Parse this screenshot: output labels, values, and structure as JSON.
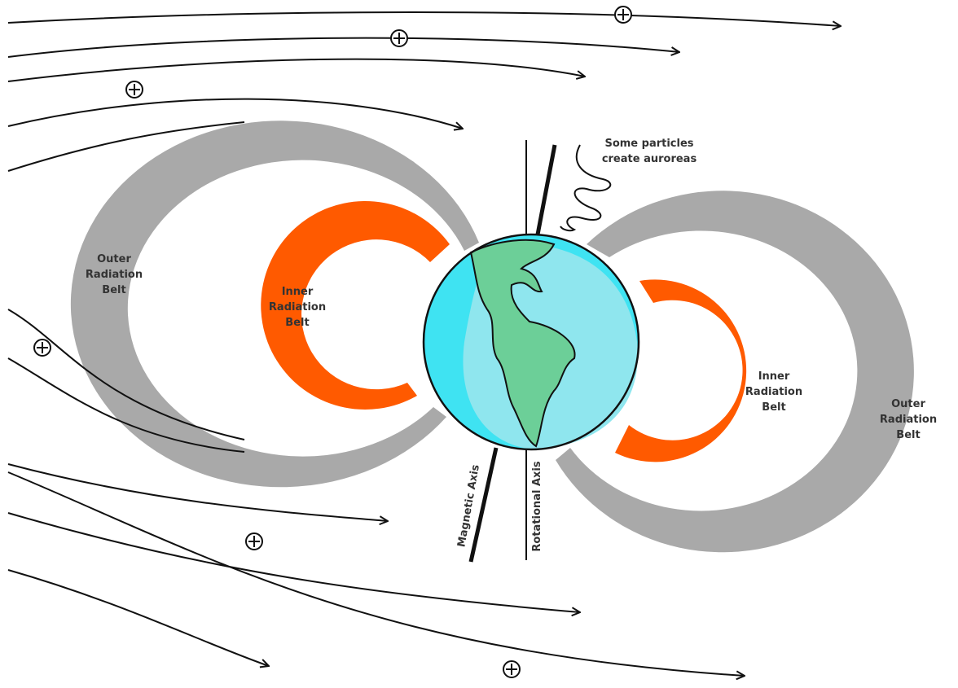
{
  "labels": [
    {
      "lines": [
        "Outer",
        "Radiation",
        "Belt"
      ]
    },
    {
      "lines": [
        "Inner",
        "Radiation",
        "Belt"
      ]
    },
    {
      "lines": [
        "Some particles",
        "create auroreas"
      ]
    },
    {
      "lines": [
        "Inner",
        "Radiation",
        "Belt"
      ]
    },
    {
      "lines": [
        "Outer",
        "Radiation",
        "Belt"
      ]
    },
    {
      "lines": [
        "Magnetic Axis"
      ]
    },
    {
      "lines": [
        "Rotational Axis"
      ]
    }
  ]
}
